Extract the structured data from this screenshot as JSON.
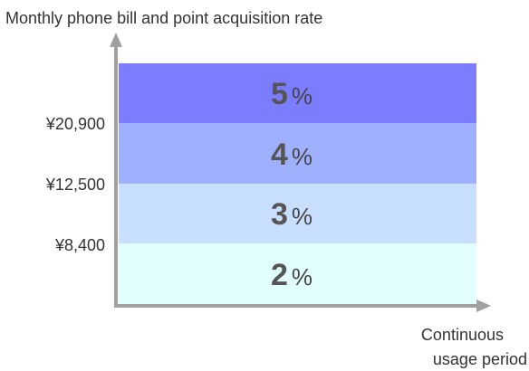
{
  "title": "Monthly phone bill and point acquisition rate",
  "x_axis_label": [
    "Continuous",
    "usage period"
  ],
  "thresholds": [
    "¥20,900",
    "¥12,500",
    "¥8,400"
  ],
  "tiers": [
    {
      "rate": "5",
      "unit": "%"
    },
    {
      "rate": "4",
      "unit": "%"
    },
    {
      "rate": "3",
      "unit": "%"
    },
    {
      "rate": "2",
      "unit": "%"
    }
  ]
}
